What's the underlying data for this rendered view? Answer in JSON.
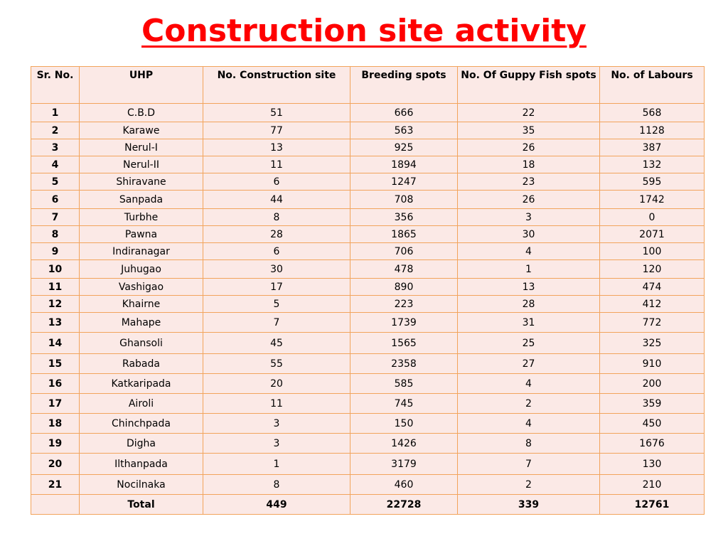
{
  "title": "Construction  site  activity",
  "table": {
    "headers": [
      "Sr. No.",
      "UHP",
      "No. Construction site",
      "Breeding spots",
      "No. Of Guppy Fish spots",
      "No. of Labours"
    ],
    "rows": [
      [
        "1",
        "C.B.D",
        "51",
        "666",
        "22",
        "568"
      ],
      [
        "2",
        "Karawe",
        "77",
        "563",
        "35",
        "1128"
      ],
      [
        "3",
        "Nerul-I",
        "13",
        "925",
        "26",
        "387"
      ],
      [
        "4",
        "Nerul-II",
        "11",
        "1894",
        "18",
        "132"
      ],
      [
        "5",
        "Shiravane",
        "6",
        "1247",
        "23",
        "595"
      ],
      [
        "6",
        "Sanpada",
        "44",
        "708",
        "26",
        "1742"
      ],
      [
        "7",
        "Turbhe",
        "8",
        "356",
        "3",
        "0"
      ],
      [
        "8",
        "Pawna",
        "28",
        "1865",
        "30",
        "2071"
      ],
      [
        "9",
        "Indiranagar",
        "6",
        "706",
        "4",
        "100"
      ],
      [
        "10",
        "Juhugao",
        "30",
        "478",
        "1",
        "120"
      ],
      [
        "11",
        "Vashigao",
        "17",
        "890",
        "13",
        "474"
      ],
      [
        "12",
        "Khairne",
        "5",
        "223",
        "28",
        "412"
      ],
      [
        "13",
        "Mahape",
        "7",
        "1739",
        "31",
        "772"
      ],
      [
        "14",
        "Ghansoli",
        "45",
        "1565",
        "25",
        "325"
      ],
      [
        "15",
        "Rabada",
        "55",
        "2358",
        "27",
        "910"
      ],
      [
        "16",
        "Katkaripada",
        "20",
        "585",
        "4",
        "200"
      ],
      [
        "17",
        "Airoli",
        "11",
        "745",
        "2",
        "359"
      ],
      [
        "18",
        "Chinchpada",
        "3",
        "150",
        "4",
        "450"
      ],
      [
        "19",
        "Digha",
        "3",
        "1426",
        "8",
        "1676"
      ],
      [
        "20",
        "Ilthanpada",
        "1",
        "3179",
        "7",
        "130"
      ],
      [
        "21",
        "Nocilnaka",
        "8",
        "460",
        "2",
        "210"
      ]
    ],
    "total": [
      "",
      "Total",
      "449",
      "22728",
      "339",
      "12761"
    ]
  },
  "colors": {
    "title": "#ff0000",
    "cell_background": "#fbe9e6",
    "cell_border": "#f2a45c"
  }
}
